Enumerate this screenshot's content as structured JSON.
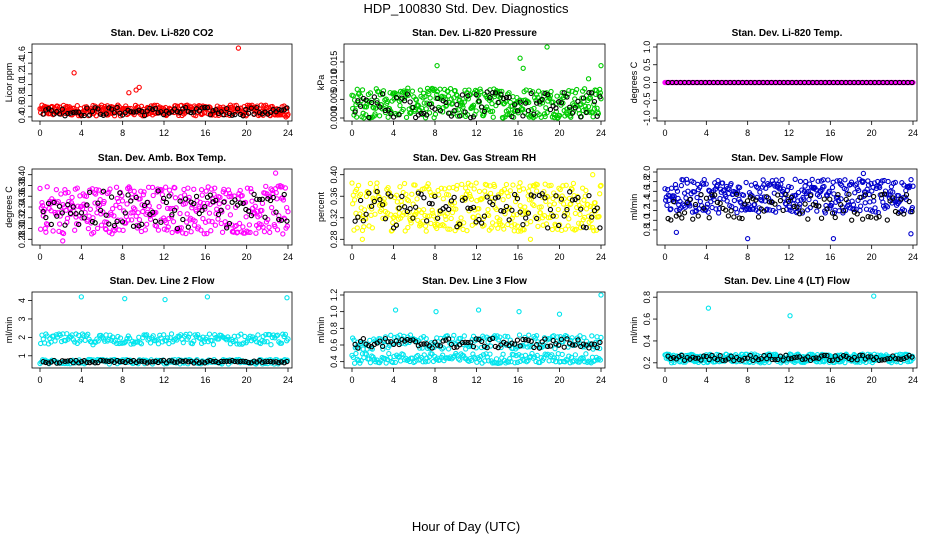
{
  "figure": {
    "title": "HDP_100830  Std. Dev. Diagnostics",
    "xlabel": "Hour of Day (UTC)"
  },
  "chart_data": [
    {
      "type": "scatter",
      "title": "Stan. Dev. Li-820 CO2",
      "ylabel": "Licor ppm",
      "xlim": [
        0,
        24
      ],
      "ylim": [
        0.38,
        1.7
      ],
      "xticks": [
        0,
        4,
        8,
        12,
        16,
        20,
        24
      ],
      "yticks": [
        0.4,
        0.6,
        0.8,
        1.0,
        1.2,
        1.4,
        1.6
      ],
      "color": "#ff0000",
      "ref_color": "#000000",
      "band": [
        0.42,
        0.62
      ],
      "ref_band": [
        0.42,
        0.58
      ],
      "outliers": [
        [
          3.3,
          1.22
        ],
        [
          8.6,
          0.85
        ],
        [
          9.3,
          0.9
        ],
        [
          9.6,
          0.95
        ],
        [
          19.2,
          1.68
        ],
        [
          23.8,
          0.4
        ]
      ]
    },
    {
      "type": "scatter",
      "title": "Stan. Dev. Li-820 Pressure",
      "ylabel": "kPa",
      "xlim": [
        0,
        24
      ],
      "ylim": [
        0,
        0.019
      ],
      "xticks": [
        0,
        4,
        8,
        12,
        16,
        20,
        24
      ],
      "yticks": [
        0.0,
        0.005,
        0.01,
        0.015
      ],
      "color": "#00cc00",
      "ref_color": "#000000",
      "band": [
        0.0,
        0.008
      ],
      "ref_band": [
        0.0,
        0.007
      ],
      "outliers": [
        [
          8.2,
          0.014
        ],
        [
          16.2,
          0.016
        ],
        [
          16.5,
          0.0133
        ],
        [
          18.8,
          0.019
        ],
        [
          22.8,
          0.0105
        ],
        [
          24.0,
          0.014
        ]
      ]
    },
    {
      "type": "scatter",
      "title": "Stan. Dev. Li-820 Temp.",
      "ylabel": "degrees C",
      "xlim": [
        0,
        24
      ],
      "ylim": [
        -1,
        1
      ],
      "xticks": [
        0,
        4,
        8,
        12,
        16,
        20,
        24
      ],
      "yticks": [
        -1.0,
        -0.5,
        0.0,
        0.5,
        1.0
      ],
      "color": "#ff00ff",
      "ref_color": "#000000",
      "band": [
        0.0,
        0.0
      ],
      "ref_band": [
        0.0,
        0.0
      ],
      "outliers": []
    },
    {
      "type": "scatter",
      "title": "Stan. Dev. Amb. Box Temp.",
      "ylabel": "degrees C",
      "xlim": [
        0,
        24
      ],
      "ylim": [
        0.275,
        0.405
      ],
      "xticks": [
        0,
        4,
        8,
        12,
        16,
        20,
        24
      ],
      "yticks": [
        0.28,
        0.3,
        0.32,
        0.34,
        0.36,
        0.38,
        0.4
      ],
      "color": "#ff00ff",
      "ref_color": "#000000",
      "band": [
        0.29,
        0.38
      ],
      "ref_band": [
        0.3,
        0.37
      ],
      "outliers": [
        [
          2.2,
          0.277
        ],
        [
          22.8,
          0.403
        ],
        [
          23.5,
          0.29
        ]
      ]
    },
    {
      "type": "scatter",
      "title": "Stan. Dev. Gas Stream RH",
      "ylabel": "percent",
      "xlim": [
        0,
        24
      ],
      "ylim": [
        0.275,
        0.405
      ],
      "xticks": [
        0,
        4,
        8,
        12,
        16,
        20,
        24
      ],
      "yticks": [
        0.28,
        0.32,
        0.36,
        0.4
      ],
      "color": "#ffff00",
      "ref_color": "#000000",
      "band": [
        0.295,
        0.385
      ],
      "ref_band": [
        0.3,
        0.37
      ],
      "outliers": [
        [
          1.0,
          0.28
        ],
        [
          16.2,
          0.385
        ],
        [
          17.2,
          0.28
        ],
        [
          23.2,
          0.4
        ]
      ]
    },
    {
      "type": "scatter",
      "title": "Stan. Dev. Sample Flow",
      "ylabel": "ml/min",
      "xlim": [
        0,
        24
      ],
      "ylim": [
        0.55,
        2.0
      ],
      "xticks": [
        0,
        4,
        8,
        12,
        16,
        20,
        24
      ],
      "yticks": [
        0.8,
        1.0,
        1.2,
        1.4,
        1.6,
        1.8,
        2.0
      ],
      "color": "#0000cc",
      "ref_color": "#000000",
      "band": [
        1.15,
        1.85
      ],
      "ref_band": [
        1.0,
        1.55
      ],
      "outliers": [
        [
          1.1,
          0.75
        ],
        [
          8.0,
          0.62
        ],
        [
          16.3,
          0.62
        ],
        [
          23.8,
          0.72
        ],
        [
          19.2,
          1.97
        ]
      ]
    },
    {
      "type": "scatter",
      "title": "Stan. Dev. Line 2 Flow",
      "ylabel": "ml/min",
      "xlim": [
        0,
        24
      ],
      "ylim": [
        0.5,
        4.3
      ],
      "xticks": [
        0,
        4,
        8,
        12,
        16,
        20,
        24
      ],
      "yticks": [
        1,
        2,
        3,
        4
      ],
      "color": "#00e5ee",
      "ref_color": "#000000",
      "band": [
        1.6,
        2.2
      ],
      "band2": [
        0.55,
        0.8
      ],
      "ref_band": [
        0.6,
        0.75
      ],
      "outliers": [
        [
          4.0,
          4.2
        ],
        [
          8.2,
          4.1
        ],
        [
          12.1,
          4.05
        ],
        [
          16.2,
          4.2
        ],
        [
          23.9,
          4.15
        ]
      ]
    },
    {
      "type": "scatter",
      "title": "Stan. Dev. Line 3 Flow",
      "ylabel": "ml/min",
      "xlim": [
        0,
        24
      ],
      "ylim": [
        0.36,
        1.2
      ],
      "xticks": [
        0,
        4,
        8,
        12,
        16,
        20,
        24
      ],
      "yticks": [
        0.4,
        0.6,
        0.8,
        1.0,
        1.2
      ],
      "color": "#00e5ee",
      "ref_color": "#000000",
      "band": [
        0.55,
        0.72
      ],
      "band2": [
        0.38,
        0.5
      ],
      "ref_band": [
        0.56,
        0.68
      ],
      "outliers": [
        [
          4.2,
          1.02
        ],
        [
          8.1,
          1.0
        ],
        [
          12.2,
          1.02
        ],
        [
          16.1,
          1.0
        ],
        [
          20.0,
          0.97
        ],
        [
          24.0,
          1.2
        ]
      ]
    },
    {
      "type": "scatter",
      "title": "Stan. Dev. Line 4 (LT) Flow",
      "ylabel": "ml/min",
      "xlim": [
        0,
        24
      ],
      "ylim": [
        0.18,
        0.82
      ],
      "xticks": [
        0,
        4,
        8,
        12,
        16,
        20,
        24
      ],
      "yticks": [
        0.2,
        0.4,
        0.6,
        0.8
      ],
      "color": "#00e5ee",
      "ref_color": "#000000",
      "band": [
        0.2,
        0.28
      ],
      "ref_band": [
        0.22,
        0.27
      ],
      "outliers": [
        [
          4.2,
          0.7
        ],
        [
          12.1,
          0.63
        ],
        [
          20.2,
          0.81
        ]
      ]
    }
  ]
}
